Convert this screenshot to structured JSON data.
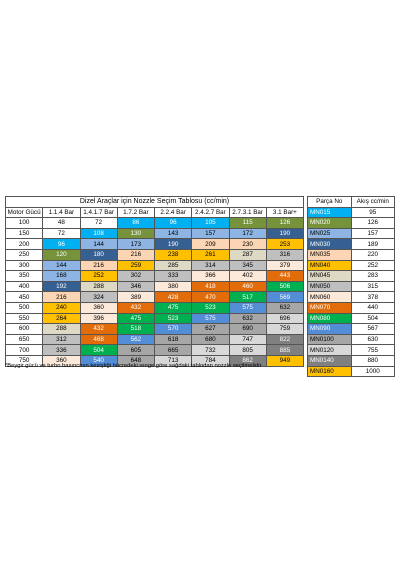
{
  "selection_table": {
    "title": "Dizel Araçlar için Nozzle Seçim Tablosu (cc/min)",
    "headers": [
      "Motor Gücü",
      "1.1.4 Bar",
      "1.4.1.7 Bar",
      "1.7.2 Bar",
      "2.2.4 Bar",
      "2.4.2.7 Bar",
      "2.7.3.1 Bar",
      "3.1 Bar+"
    ],
    "rows": [
      [
        100,
        48,
        72,
        86,
        96,
        105,
        115,
        126
      ],
      [
        150,
        72,
        108,
        130,
        143,
        157,
        172,
        190
      ],
      [
        200,
        96,
        144,
        173,
        190,
        209,
        230,
        253
      ],
      [
        250,
        120,
        180,
        216,
        238,
        261,
        287,
        316
      ],
      [
        300,
        144,
        216,
        259,
        285,
        314,
        345,
        379
      ],
      [
        350,
        168,
        252,
        302,
        333,
        366,
        402,
        443
      ],
      [
        400,
        192,
        288,
        346,
        380,
        418,
        460,
        506
      ],
      [
        450,
        216,
        324,
        389,
        428,
        470,
        517,
        569
      ],
      [
        500,
        240,
        360,
        432,
        475,
        523,
        575,
        632
      ],
      [
        550,
        264,
        396,
        475,
        523,
        575,
        632,
        696
      ],
      [
        600,
        288,
        432,
        518,
        570,
        627,
        690,
        759
      ],
      [
        650,
        312,
        468,
        562,
        618,
        680,
        747,
        822
      ],
      [
        700,
        336,
        504,
        605,
        665,
        732,
        805,
        885
      ],
      [
        750,
        360,
        540,
        648,
        713,
        784,
        862,
        949
      ]
    ],
    "footnote": "*Beygir gücü ve turbo basıncının kesiştiği hücredeki renge göre sağdaki tablodan nozzle seçilmelidir"
  },
  "nozzle_table": {
    "headers": [
      "Parça No",
      "Akış cc/min"
    ],
    "rows": [
      {
        "part": "MN015",
        "flow": 95,
        "color": "#00b0f0"
      },
      {
        "part": "MN020",
        "flow": 126,
        "color": "#76933c"
      },
      {
        "part": "MN025",
        "flow": 157,
        "color": "#8db4e2"
      },
      {
        "part": "MN030",
        "flow": 189,
        "color": "#366092"
      },
      {
        "part": "MN035",
        "flow": 220,
        "color": "#fcd5b4"
      },
      {
        "part": "MN040",
        "flow": 252,
        "color": "#ffc000"
      },
      {
        "part": "MN045",
        "flow": 283,
        "color": "#ddd9c4"
      },
      {
        "part": "MN050",
        "flow": 315,
        "color": "#bfbfbf"
      },
      {
        "part": "MN060",
        "flow": 378,
        "color": "#fde9d9"
      },
      {
        "part": "MN070",
        "flow": 440,
        "color": "#e26b0a"
      },
      {
        "part": "MN080",
        "flow": 504,
        "color": "#00b050"
      },
      {
        "part": "MN090",
        "flow": 567,
        "color": "#538dd5"
      },
      {
        "part": "MN0100",
        "flow": 630,
        "color": "#a6a6a6"
      },
      {
        "part": "MN0120",
        "flow": 755,
        "color": "#d8d8d8"
      },
      {
        "part": "MN0140",
        "flow": 880,
        "color": "#808080"
      },
      {
        "part": "MN0160",
        "flow": 1000,
        "color": "#ffc000"
      }
    ]
  }
}
